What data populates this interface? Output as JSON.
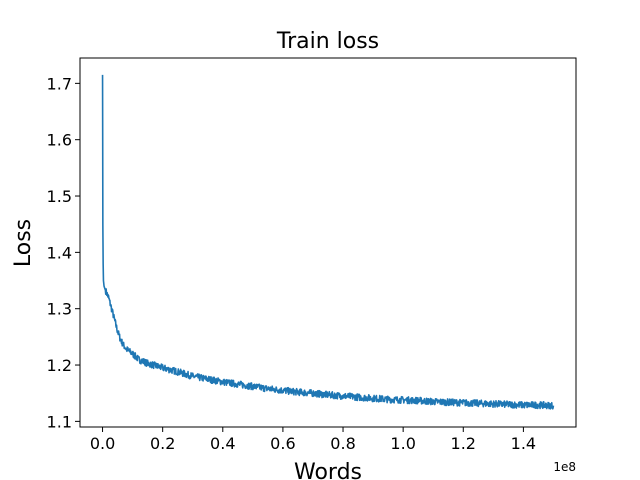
{
  "chart_data": {
    "type": "line",
    "title": "Train loss",
    "xlabel": "Words",
    "ylabel": "Loss",
    "x_offset_label": "1e8",
    "xlim": [
      -0.075,
      1.575
    ],
    "ylim": [
      1.09,
      1.745
    ],
    "x_ticks": [
      0.0,
      0.2,
      0.4,
      0.6,
      0.8,
      1.0,
      1.2,
      1.4
    ],
    "x_tick_labels": [
      "0.0",
      "0.2",
      "0.4",
      "0.6",
      "0.8",
      "1.0",
      "1.2",
      "1.4"
    ],
    "y_ticks": [
      1.1,
      1.2,
      1.3,
      1.4,
      1.5,
      1.6,
      1.7
    ],
    "y_tick_labels": [
      "1.1",
      "1.2",
      "1.3",
      "1.4",
      "1.5",
      "1.6",
      "1.7"
    ],
    "grid": false,
    "color": "#1f77b4",
    "series": [
      {
        "x": [
          0.0,
          0.0005,
          0.001,
          0.002,
          0.003,
          0.005,
          0.008,
          0.012,
          0.02,
          0.03,
          0.04,
          0.05,
          0.06,
          0.07,
          0.08,
          0.1,
          0.12,
          0.15,
          0.2,
          0.25,
          0.3,
          0.35,
          0.4,
          0.45,
          0.5,
          0.55,
          0.6,
          0.65,
          0.7,
          0.75,
          0.8,
          0.85,
          0.9,
          0.95,
          1.0,
          1.05,
          1.1,
          1.15,
          1.2,
          1.25,
          1.3,
          1.35,
          1.4,
          1.45,
          1.5
        ],
        "y": [
          1.715,
          1.6,
          1.45,
          1.38,
          1.35,
          1.34,
          1.335,
          1.33,
          1.32,
          1.3,
          1.28,
          1.26,
          1.245,
          1.235,
          1.228,
          1.22,
          1.21,
          1.203,
          1.195,
          1.188,
          1.18,
          1.175,
          1.17,
          1.166,
          1.162,
          1.158,
          1.155,
          1.152,
          1.15,
          1.147,
          1.145,
          1.143,
          1.141,
          1.139,
          1.138,
          1.137,
          1.135,
          1.134,
          1.133,
          1.132,
          1.131,
          1.13,
          1.129,
          1.129,
          1.128
        ]
      }
    ]
  }
}
